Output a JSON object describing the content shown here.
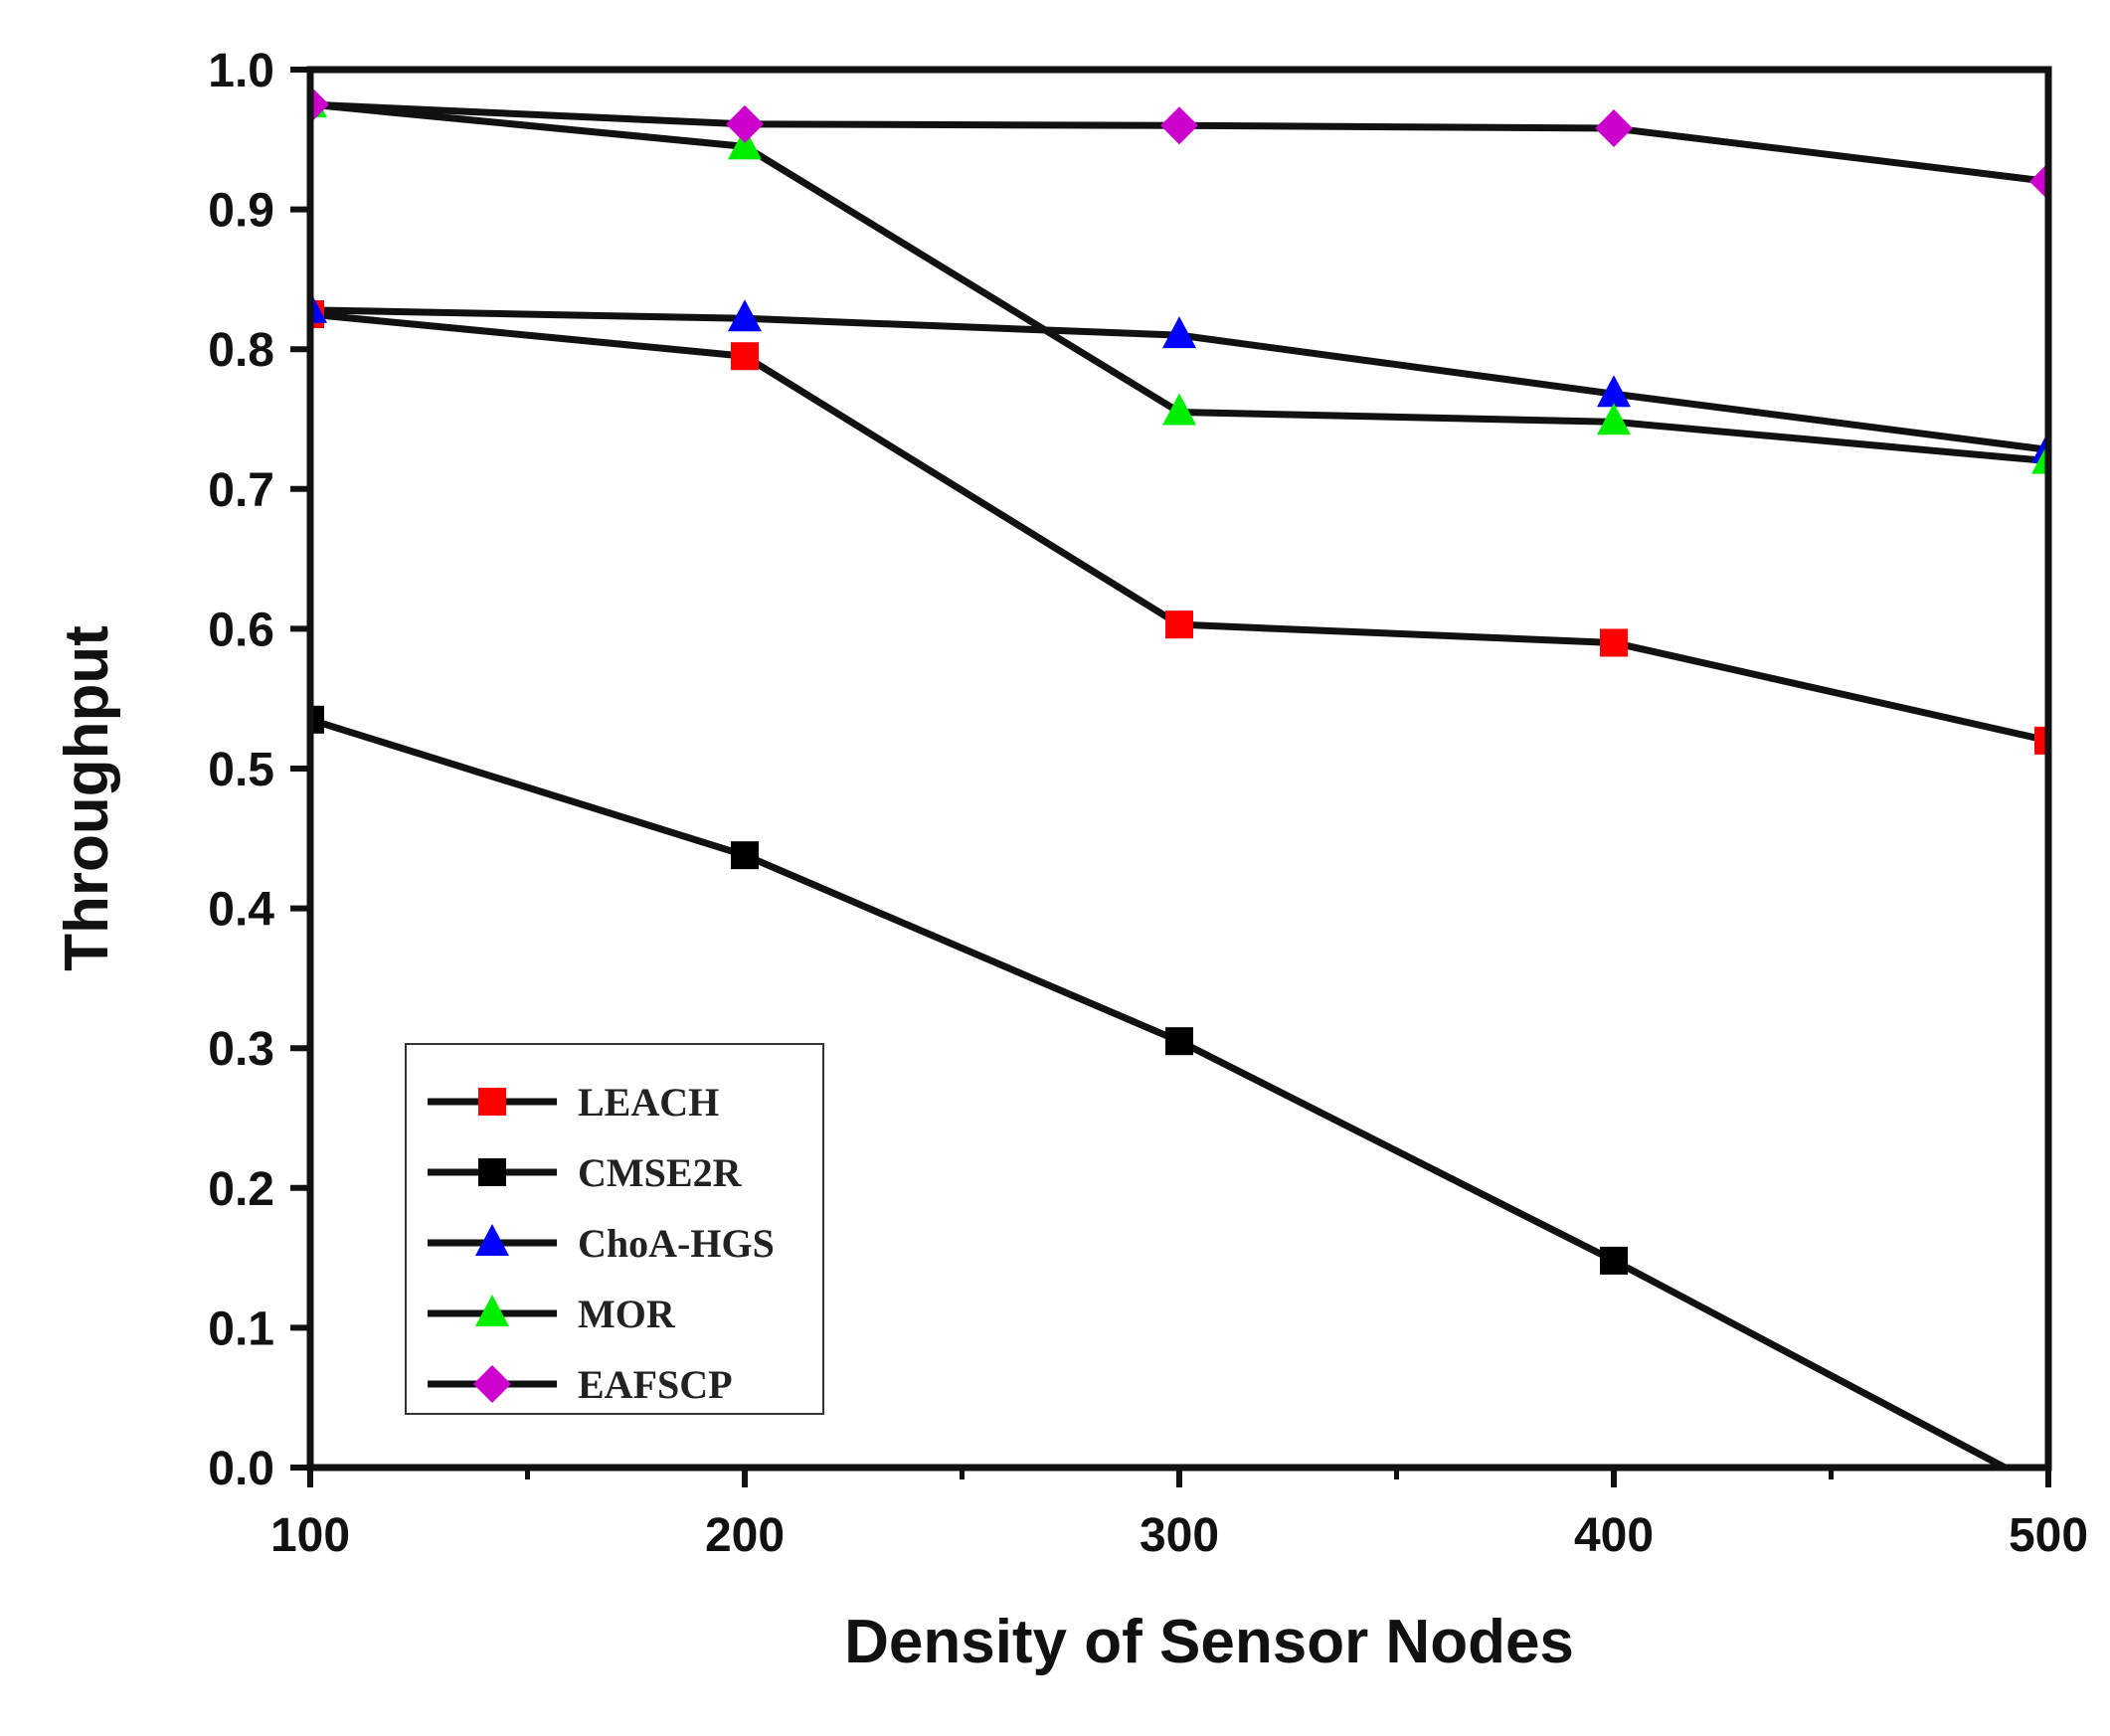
{
  "chart_data": {
    "type": "line",
    "title": "",
    "xlabel": "Density of Sensor Nodes",
    "ylabel": "Throughput",
    "xlim": [
      100,
      500
    ],
    "ylim": [
      0.0,
      1.0
    ],
    "x_ticks": [
      "100",
      "200",
      "300",
      "400",
      "500"
    ],
    "y_ticks": [
      "0.0",
      "0.1",
      "0.2",
      "0.3",
      "0.4",
      "0.5",
      "0.6",
      "0.7",
      "0.8",
      "0.9",
      "1.0"
    ],
    "x_minor_ticks": [
      150,
      250,
      350,
      450
    ],
    "grid": false,
    "legend_position": "bottom-left",
    "line_color": "#111111",
    "series": [
      {
        "name": "LEACH",
        "marker": "square",
        "color": "#ff0000",
        "x": [
          100,
          200,
          300,
          400,
          500
        ],
        "y": [
          0.825,
          0.795,
          0.603,
          0.59,
          0.52
        ]
      },
      {
        "name": "CMSE2R",
        "marker": "square",
        "color": "#000000",
        "x": [
          100,
          200,
          300,
          400,
          490
        ],
        "y": [
          0.535,
          0.438,
          0.305,
          0.148,
          0.0
        ]
      },
      {
        "name": "ChoA-HGS",
        "marker": "triangle",
        "color": "#0000ff",
        "x": [
          100,
          200,
          300,
          400,
          500
        ],
        "y": [
          0.828,
          0.822,
          0.81,
          0.768,
          0.728
        ]
      },
      {
        "name": "MOR",
        "marker": "triangle",
        "color": "#00ee00",
        "x": [
          100,
          200,
          300,
          400,
          500
        ],
        "y": [
          0.975,
          0.945,
          0.755,
          0.748,
          0.72
        ]
      },
      {
        "name": "EAFSCP",
        "marker": "diamond",
        "color": "#cc00cc",
        "x": [
          100,
          200,
          300,
          400,
          500
        ],
        "y": [
          0.975,
          0.961,
          0.96,
          0.958,
          0.92
        ]
      }
    ]
  }
}
